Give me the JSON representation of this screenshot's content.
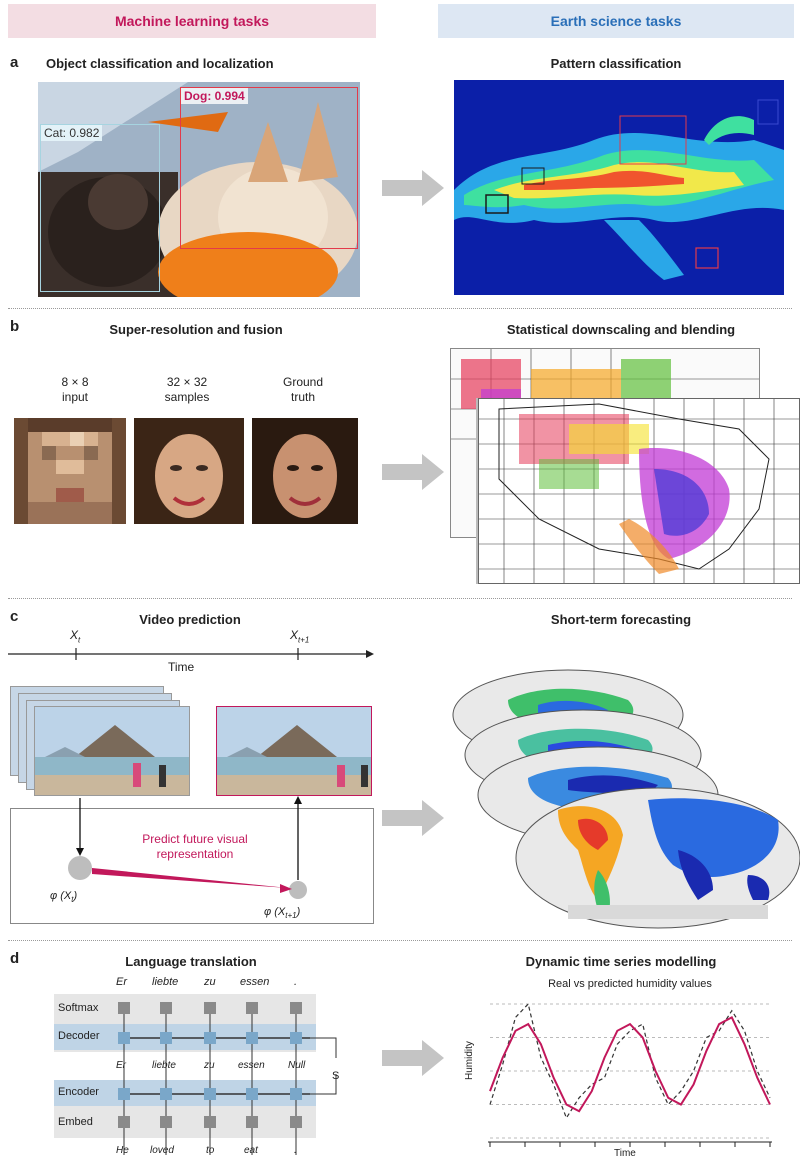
{
  "headers": {
    "left": "Machine learning tasks",
    "right": "Earth science tasks"
  },
  "panels": {
    "a": {
      "label": "a",
      "left_title": "Object classification and localization",
      "right_title": "Pattern classification",
      "dog_label": "Dog: 0.994",
      "cat_label": "Cat: 0.982"
    },
    "b": {
      "label": "b",
      "left_title": "Super-resolution and fusion",
      "right_title": "Statistical downscaling and blending",
      "face_captions": [
        "8 × 8\ninput",
        "32 × 32\nsamples",
        "Ground\ntruth"
      ]
    },
    "c": {
      "label": "c",
      "left_title": "Video prediction",
      "right_title": "Short-term forecasting",
      "x_t": "X",
      "x_t_sub": "t",
      "x_t1": "X",
      "x_t1_sub": "t+1",
      "time_label": "Time",
      "predict_text": "Predict future visual representation",
      "phi_t": "φ (X",
      "phi_t_sub": "t",
      "phi_t1": "φ (X",
      "phi_t1_sub": "t+1"
    },
    "d": {
      "label": "d",
      "left_title": "Language translation",
      "right_title": "Dynamic time series modelling",
      "chart_subtitle": "Real vs predicted humidity values",
      "y_axis_label": "Humidity",
      "x_axis_label": "Time",
      "rows": [
        "Softmax",
        "Decoder",
        "Encoder",
        "Embed"
      ],
      "top_words": [
        "Er",
        "liebte",
        "zu",
        "essen",
        "."
      ],
      "mid_words": [
        "Er",
        "liebte",
        "zu",
        "essen",
        "Null"
      ],
      "bottom_words": [
        "He",
        "loved",
        "to",
        "eat",
        "."
      ],
      "s_label": "S"
    }
  },
  "colors": {
    "accent_pink": "#c2185b",
    "accent_blue": "#2a6fb8",
    "predicted_line": "#c2185b",
    "real_line": "#333333"
  },
  "chart_data": {
    "type": "line",
    "title": "Real vs predicted humidity values",
    "xlabel": "Time",
    "ylabel": "Humidity",
    "series": [
      {
        "values": [
          0.35,
          0.6,
          0.8,
          0.85,
          0.7,
          0.45,
          0.25,
          0.2,
          0.35,
          0.6,
          0.8,
          0.85,
          0.75,
          0.5,
          0.3,
          0.25,
          0.4,
          0.65,
          0.85,
          0.9,
          0.7,
          0.45,
          0.25
        ]
      },
      {
        "values": [
          0.25,
          0.55,
          0.9,
          1.0,
          0.6,
          0.4,
          0.15,
          0.3,
          0.4,
          0.45,
          0.7,
          0.8,
          0.85,
          0.45,
          0.25,
          0.35,
          0.5,
          0.75,
          0.8,
          0.95,
          0.8,
          0.5,
          0.3
        ]
      }
    ]
  }
}
